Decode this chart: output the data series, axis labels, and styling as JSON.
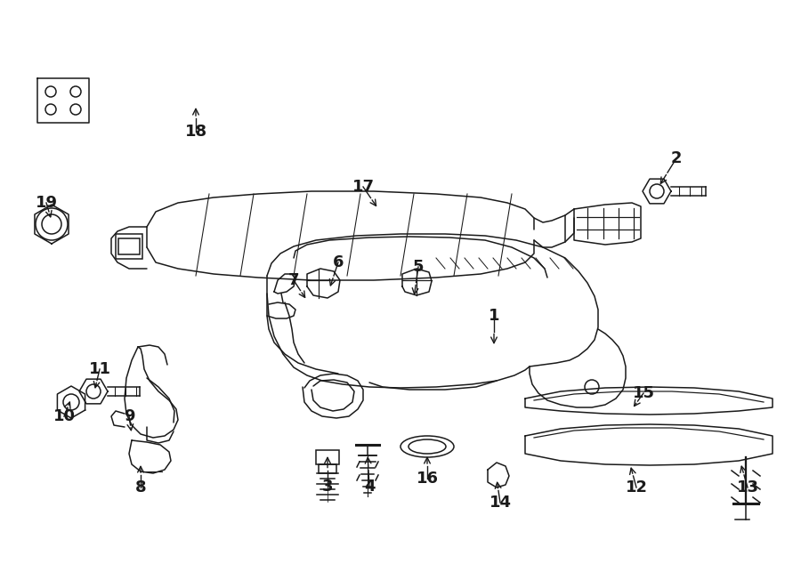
{
  "bg": "#ffffff",
  "lc": "#1a1a1a",
  "lw": 1.1,
  "fw": 9.0,
  "fh": 6.61,
  "labels": [
    [
      "1",
      555,
      355,
      555,
      390
    ],
    [
      "2",
      760,
      178,
      740,
      210
    ],
    [
      "3",
      368,
      547,
      368,
      510
    ],
    [
      "4",
      415,
      547,
      413,
      510
    ],
    [
      "5",
      470,
      300,
      465,
      335
    ],
    [
      "6",
      380,
      295,
      370,
      325
    ],
    [
      "7",
      330,
      315,
      345,
      338
    ],
    [
      "8",
      158,
      548,
      158,
      520
    ],
    [
      "9",
      145,
      468,
      148,
      488
    ],
    [
      "10",
      72,
      468,
      80,
      448
    ],
    [
      "11",
      112,
      415,
      106,
      440
    ],
    [
      "12",
      715,
      548,
      708,
      522
    ],
    [
      "13",
      840,
      548,
      832,
      520
    ],
    [
      "14",
      562,
      565,
      558,
      538
    ],
    [
      "15",
      723,
      442,
      710,
      460
    ],
    [
      "16",
      480,
      538,
      480,
      510
    ],
    [
      "17",
      408,
      210,
      425,
      235
    ],
    [
      "18",
      220,
      148,
      220,
      118
    ],
    [
      "19",
      52,
      228,
      58,
      248
    ]
  ]
}
